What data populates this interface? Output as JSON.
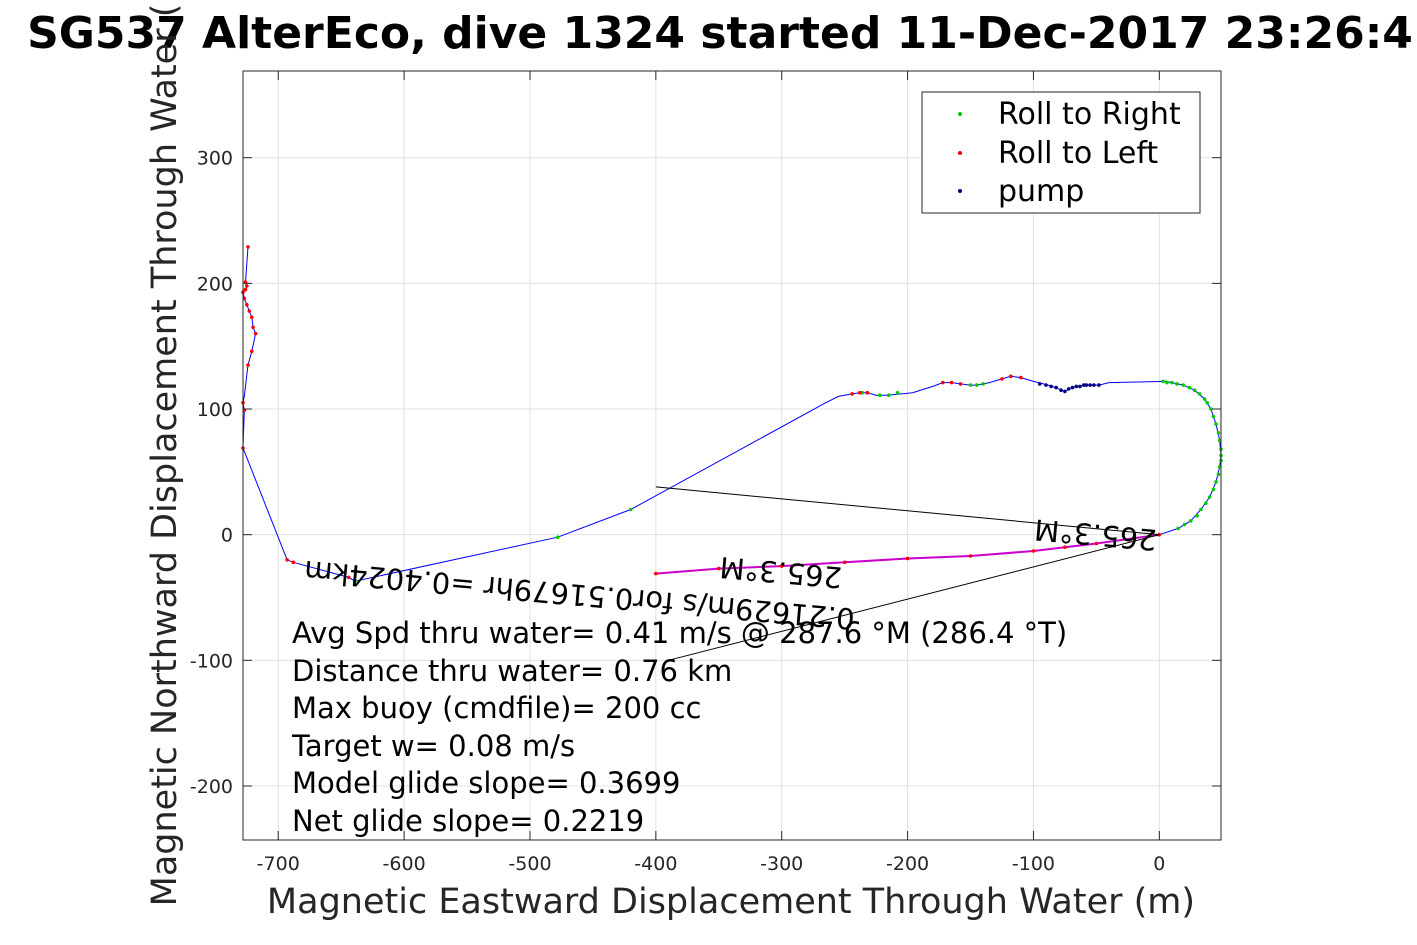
{
  "chart_data": {
    "type": "scatter",
    "title": "SG537 AlterEco, dive 1324 started 11-Dec-2017 23:26:4",
    "xlabel": "Magnetic Eastward Displacement Through Water (m)",
    "ylabel": "Magnetic Northward Displacement Through Water (",
    "xlim": [
      -728,
      49
    ],
    "ylim": [
      -243,
      369
    ],
    "xticks": [
      -700,
      -600,
      -500,
      -400,
      -300,
      -200,
      -100,
      0
    ],
    "yticks": [
      -200,
      -100,
      0,
      100,
      200,
      300
    ],
    "grid": true,
    "legend_placement": "top-right",
    "track_color": "#0000ff",
    "series": [
      {
        "name": "Roll to Right",
        "color": "#00cc00"
      },
      {
        "name": "Roll to Left",
        "color": "#ff0000"
      },
      {
        "name": "pump",
        "color": "#000080"
      }
    ],
    "track": [
      [
        0,
        0
      ],
      [
        15,
        5
      ],
      [
        25,
        11
      ],
      [
        33,
        20
      ],
      [
        40,
        30
      ],
      [
        45,
        42
      ],
      [
        48,
        54
      ],
      [
        49,
        63
      ],
      [
        48,
        75
      ],
      [
        45,
        88
      ],
      [
        41,
        100
      ],
      [
        36,
        108
      ],
      [
        28,
        115
      ],
      [
        19,
        119
      ],
      [
        10,
        121
      ],
      [
        5,
        122
      ],
      [
        -40,
        121
      ],
      [
        -48,
        119
      ],
      [
        -55,
        119
      ],
      [
        -60,
        119
      ],
      [
        -65,
        118
      ],
      [
        -70,
        117
      ],
      [
        -75,
        114
      ],
      [
        -80,
        116
      ],
      [
        -85,
        118
      ],
      [
        -92,
        120
      ],
      [
        -100,
        122
      ],
      [
        -110,
        125
      ],
      [
        -118,
        126
      ],
      [
        -125,
        124
      ],
      [
        -135,
        121
      ],
      [
        -145,
        119
      ],
      [
        -150,
        119
      ],
      [
        -158,
        120
      ],
      [
        -165,
        121
      ],
      [
        -172,
        121
      ],
      [
        -180,
        118
      ],
      [
        -196,
        113
      ],
      [
        -205,
        112
      ],
      [
        -215,
        111
      ],
      [
        -225,
        111
      ],
      [
        -232,
        113
      ],
      [
        -238,
        113
      ],
      [
        -244,
        112
      ],
      [
        -255,
        110
      ],
      [
        -265,
        105
      ],
      [
        -420,
        20
      ],
      [
        -478,
        -2
      ],
      [
        -639,
        -37
      ],
      [
        -644,
        -34
      ],
      [
        -688,
        -22
      ],
      [
        -693,
        -20
      ],
      [
        -728,
        69
      ],
      [
        -727,
        99
      ],
      [
        -728,
        105
      ],
      [
        -727,
        110
      ],
      [
        -724,
        135
      ],
      [
        -721,
        146
      ],
      [
        -718,
        160
      ],
      [
        -720,
        165
      ],
      [
        -721,
        173
      ],
      [
        -723,
        178
      ],
      [
        -725,
        183
      ],
      [
        -727,
        188
      ],
      [
        -728,
        193
      ],
      [
        -726,
        195
      ],
      [
        -725,
        198
      ],
      [
        -726,
        201
      ],
      [
        -724,
        229
      ]
    ],
    "right_points": [
      [
        15,
        5
      ],
      [
        20,
        8
      ],
      [
        25,
        11
      ],
      [
        30,
        15
      ],
      [
        33,
        20
      ],
      [
        37,
        25
      ],
      [
        40,
        30
      ],
      [
        43,
        36
      ],
      [
        45,
        42
      ],
      [
        47,
        48
      ],
      [
        48,
        54
      ],
      [
        49,
        59
      ],
      [
        49,
        63
      ],
      [
        49,
        68
      ],
      [
        48,
        75
      ],
      [
        47,
        81
      ],
      [
        45,
        88
      ],
      [
        43,
        94
      ],
      [
        41,
        100
      ],
      [
        38,
        105
      ],
      [
        36,
        108
      ],
      [
        32,
        112
      ],
      [
        28,
        115
      ],
      [
        24,
        117
      ],
      [
        19,
        119
      ],
      [
        14,
        120
      ],
      [
        10,
        121
      ],
      [
        6,
        121
      ],
      [
        3,
        122
      ],
      [
        -150,
        119
      ],
      [
        -145,
        119
      ],
      [
        -140,
        120
      ],
      [
        -208,
        113
      ],
      [
        -215,
        111
      ],
      [
        -222,
        111
      ],
      [
        -236,
        113
      ],
      [
        -478,
        -2
      ],
      [
        -420,
        20
      ],
      [
        -639,
        -37
      ]
    ],
    "left_points": [
      [
        0,
        0
      ],
      [
        -50,
        -7
      ],
      [
        -75,
        -10
      ],
      [
        -100,
        -13
      ],
      [
        -150,
        -17
      ],
      [
        -200,
        -19
      ],
      [
        -250,
        -22
      ],
      [
        -300,
        -25
      ],
      [
        -350,
        -27
      ],
      [
        -400,
        -31
      ],
      [
        -110,
        125
      ],
      [
        -118,
        126
      ],
      [
        -125,
        124
      ],
      [
        -158,
        120
      ],
      [
        -165,
        121
      ],
      [
        -172,
        121
      ],
      [
        -238,
        113
      ],
      [
        -244,
        112
      ],
      [
        -232,
        113
      ],
      [
        -644,
        -34
      ],
      [
        -688,
        -22
      ],
      [
        -693,
        -20
      ],
      [
        -728,
        69
      ],
      [
        -727,
        99
      ],
      [
        -728,
        105
      ],
      [
        -724,
        135
      ],
      [
        -721,
        146
      ],
      [
        -718,
        160
      ],
      [
        -720,
        165
      ],
      [
        -721,
        173
      ],
      [
        -723,
        178
      ],
      [
        -725,
        183
      ],
      [
        -727,
        188
      ],
      [
        -728,
        193
      ],
      [
        -726,
        195
      ],
      [
        -725,
        198
      ],
      [
        -726,
        201
      ],
      [
        -724,
        229
      ]
    ],
    "pump_points": [
      [
        -48,
        119
      ],
      [
        -52,
        119
      ],
      [
        -55,
        119
      ],
      [
        -58,
        119
      ],
      [
        -60,
        119
      ],
      [
        -63,
        118
      ],
      [
        -66,
        118
      ],
      [
        -69,
        117
      ],
      [
        -72,
        116
      ],
      [
        -75,
        114
      ],
      [
        -78,
        115
      ],
      [
        -82,
        117
      ],
      [
        -86,
        118
      ],
      [
        -90,
        119
      ],
      [
        -95,
        120
      ]
    ],
    "black_lines": [
      [
        [
          -400,
          38
        ],
        [
          0,
          0
        ]
      ],
      [
        [
          -390,
          -100
        ],
        [
          0,
          0
        ]
      ]
    ],
    "rotated_labels": [
      {
        "text": "265.3°M",
        "x": -50,
        "y": 8,
        "rotate": 185
      },
      {
        "text": "0.21629m/s for0.51679hr =0.4024km",
        "x": -460,
        "y": -40,
        "rotate": 185
      },
      {
        "text": "265.3°M",
        "x": -300,
        "y": -22,
        "rotate": 185
      }
    ],
    "annotations": [
      "Avg Spd thru water=  0.41 m/s @ 287.6 °M (286.4 °T)",
      "Distance thru water=  0.76 km",
      "Max buoy (cmdfile)= 200 cc",
      "Target w= 0.08 m/s",
      "Model glide slope= 0.3699",
      "Net glide slope= 0.2219"
    ]
  }
}
